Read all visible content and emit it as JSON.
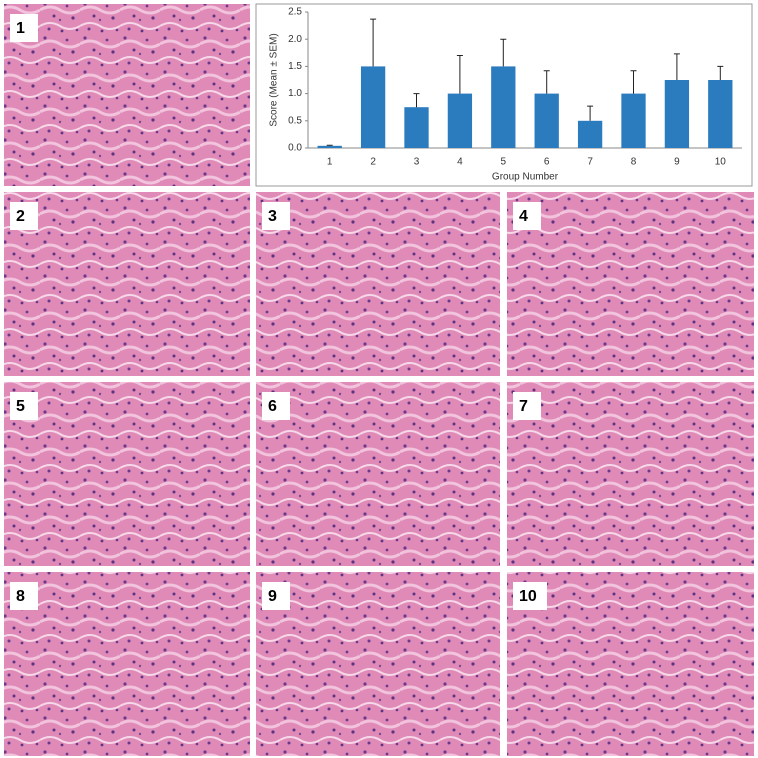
{
  "chart_data": {
    "type": "bar",
    "x_label": "Group Number",
    "y_label": "Score (Mean ± SEM)",
    "categories": [
      "1",
      "2",
      "3",
      "4",
      "5",
      "6",
      "7",
      "8",
      "9",
      "10"
    ],
    "values": [
      0.04,
      1.5,
      0.75,
      1.0,
      1.5,
      1.0,
      0.5,
      1.0,
      1.25,
      1.25
    ],
    "errors": [
      0.01,
      0.87,
      0.25,
      0.7,
      0.5,
      0.42,
      0.27,
      0.42,
      0.48,
      0.25
    ],
    "color": "#2b7bbf",
    "ylim": [
      0,
      2.5
    ],
    "yticks": [
      {
        "value": 0,
        "label": "0.0"
      },
      {
        "value": 0.5,
        "label": "0.5"
      },
      {
        "value": 1,
        "label": "1.0"
      },
      {
        "value": 1.5,
        "label": "1.5"
      },
      {
        "value": 2,
        "label": "2.0"
      },
      {
        "value": 2.5,
        "label": "2.5"
      }
    ]
  },
  "panels": [
    {
      "label": "1"
    },
    {
      "label": "2"
    },
    {
      "label": "3"
    },
    {
      "label": "4"
    },
    {
      "label": "5"
    },
    {
      "label": "6"
    },
    {
      "label": "7"
    },
    {
      "label": "8"
    },
    {
      "label": "9"
    },
    {
      "label": "10"
    }
  ]
}
